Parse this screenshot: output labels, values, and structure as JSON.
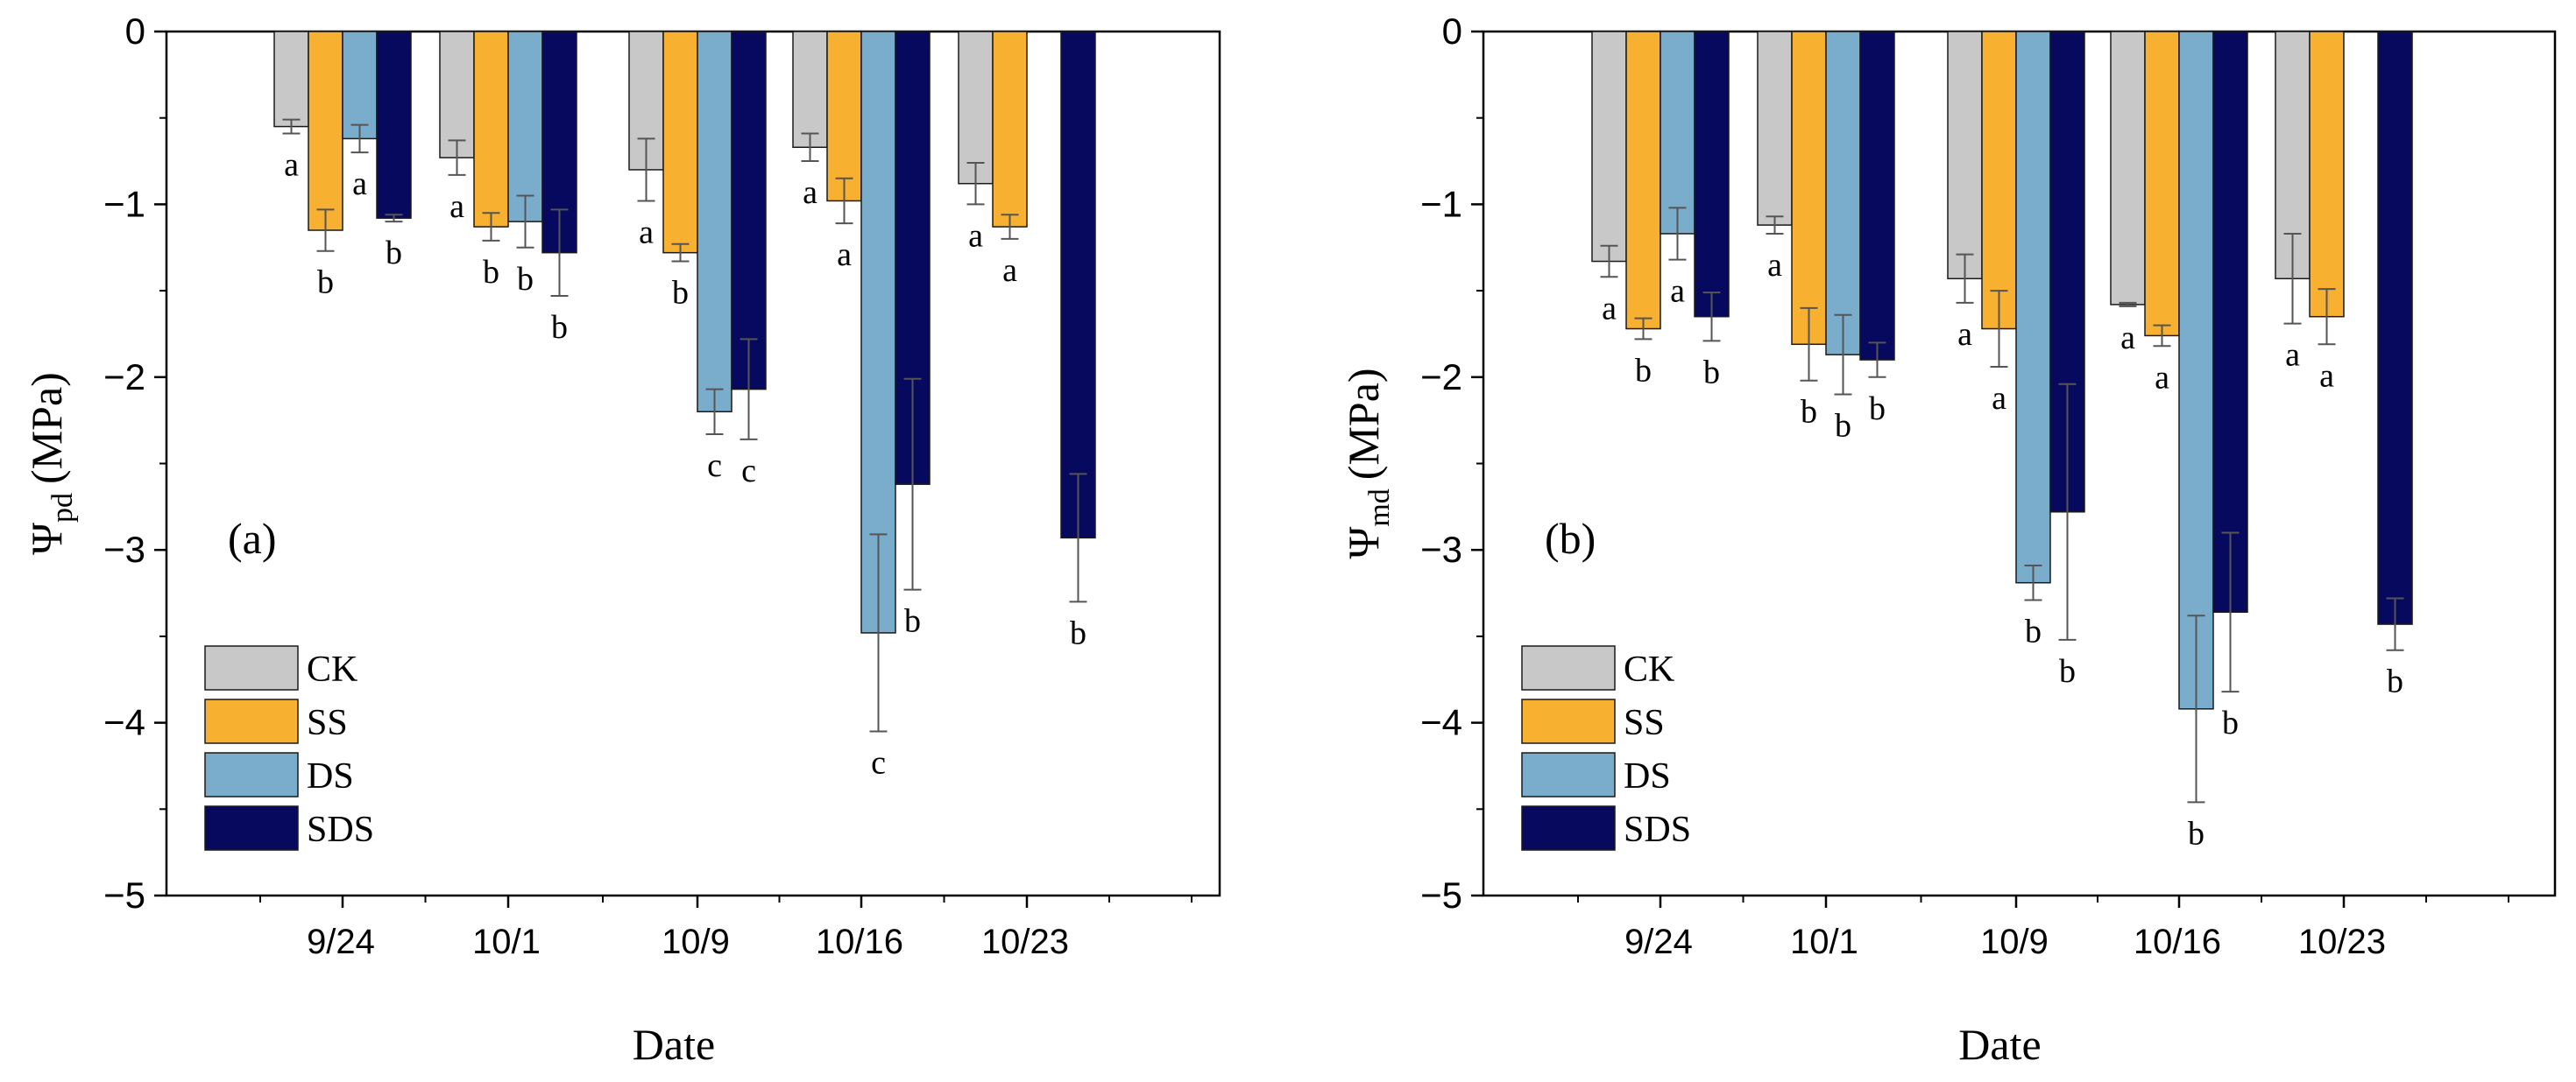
{
  "chart_data": [
    {
      "type": "bar",
      "panel_label": "(a)",
      "ylabel_symbol": "Ψ",
      "ylabel_subscript": "pd",
      "ylabel_unit": "(MPa)",
      "xlabel": "Date",
      "ylim": [
        -5,
        0
      ],
      "yticks": [
        "0",
        "−1",
        "−2",
        "−3",
        "−4",
        "−5"
      ],
      "categories": [
        "9/24",
        "10/1",
        "10/9",
        "10/16",
        "10/23"
      ],
      "series": [
        {
          "name": "CK",
          "values": [
            -0.55,
            -0.73,
            -0.8,
            -0.67,
            -0.88
          ],
          "errors": [
            0.04,
            0.1,
            0.18,
            0.08,
            0.12
          ],
          "letters": [
            "a",
            "a",
            "a",
            "a",
            "a"
          ]
        },
        {
          "name": "SS",
          "values": [
            -1.15,
            -1.13,
            -1.28,
            -0.98,
            -1.13
          ],
          "errors": [
            0.12,
            0.08,
            0.05,
            0.13,
            0.07
          ],
          "letters": [
            "b",
            "b",
            "b",
            "a",
            "a"
          ]
        },
        {
          "name": "DS",
          "values": [
            -0.62,
            -1.1,
            -2.2,
            -3.48,
            null
          ],
          "errors": [
            0.08,
            0.15,
            0.13,
            0.57,
            null
          ],
          "letters": [
            "a",
            "b",
            "c",
            "c",
            ""
          ]
        },
        {
          "name": "SDS",
          "values": [
            -1.08,
            -1.28,
            -2.07,
            -2.62,
            -2.93
          ],
          "errors": [
            0.02,
            0.25,
            0.29,
            0.61,
            0.37
          ],
          "letters": [
            "b",
            "b",
            "c",
            "b",
            "b"
          ]
        }
      ],
      "legend": [
        "CK",
        "SS",
        "DS",
        "SDS"
      ]
    },
    {
      "type": "bar",
      "panel_label": "(b)",
      "ylabel_symbol": "Ψ",
      "ylabel_subscript": "md",
      "ylabel_unit": "(MPa)",
      "xlabel": "Date",
      "ylim": [
        -5,
        0
      ],
      "yticks": [
        "0",
        "−1",
        "−2",
        "−3",
        "−4",
        "−5"
      ],
      "categories": [
        "9/24",
        "10/1",
        "10/9",
        "10/16",
        "10/23"
      ],
      "series": [
        {
          "name": "CK",
          "values": [
            -1.33,
            -1.12,
            -1.43,
            -1.58,
            -1.43
          ],
          "errors": [
            0.09,
            0.05,
            0.14,
            0.01,
            0.26
          ],
          "letters": [
            "a",
            "a",
            "a",
            "a",
            "a"
          ]
        },
        {
          "name": "SS",
          "values": [
            -1.72,
            -1.81,
            -1.72,
            -1.76,
            -1.65
          ],
          "errors": [
            0.06,
            0.21,
            0.22,
            0.06,
            0.16
          ],
          "letters": [
            "b",
            "b",
            "a",
            "a",
            "a"
          ]
        },
        {
          "name": "DS",
          "values": [
            -1.17,
            -1.87,
            -3.19,
            -3.92,
            null
          ],
          "errors": [
            0.15,
            0.23,
            0.1,
            0.54,
            null
          ],
          "letters": [
            "a",
            "b",
            "b",
            "b",
            ""
          ]
        },
        {
          "name": "SDS",
          "values": [
            -1.65,
            -1.9,
            -2.78,
            -3.36,
            -3.43
          ],
          "errors": [
            0.14,
            0.1,
            0.74,
            0.46,
            0.15
          ],
          "letters": [
            "b",
            "b",
            "b",
            "b",
            "b"
          ]
        }
      ],
      "legend": [
        "CK",
        "SS",
        "DS",
        "SDS"
      ]
    }
  ],
  "colors": {
    "CK": "#c8c8c8",
    "SS": "#f7b030",
    "DS": "#7aaccb",
    "SDS": "#06095e",
    "axis": "#000000",
    "errorbar": "#555555"
  }
}
